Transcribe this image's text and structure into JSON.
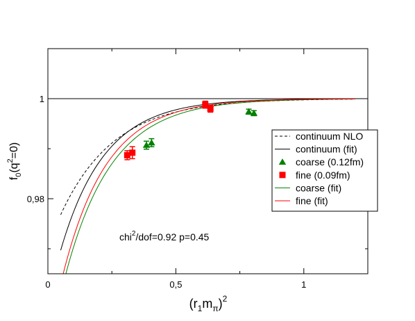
{
  "chart_data": {
    "type": "scatter",
    "title": "",
    "xlabel": "(r1mπ)2",
    "ylabel": "f0(q2=0)",
    "xlabel_parts": {
      "base": "(r",
      "sub1": "1",
      "mid": "m",
      "sub2": "π",
      "close": ")",
      "sup": "2"
    },
    "ylabel_parts": {
      "base": "f",
      "sub": "0",
      "rest1": "(q",
      "sup": "2",
      "rest2": "=0)"
    },
    "xlim": [
      0,
      1.25
    ],
    "ylim": [
      0.965,
      1.01
    ],
    "xticks": [
      {
        "value": 0,
        "label": "0"
      },
      {
        "value": 0.5,
        "label": "0,5"
      },
      {
        "value": 1,
        "label": "1"
      }
    ],
    "yticks": [
      {
        "value": 0.98,
        "label": "0,98"
      },
      {
        "value": 1.0,
        "label": "1"
      }
    ],
    "reference_line": 1.0,
    "annotation": {
      "base": "chi",
      "sup": "2",
      "rest": "/dof=0.92  p=0.45"
    },
    "legend_position": "right",
    "series": [
      {
        "name": "continuum NLO",
        "kind": "line",
        "color": "#000000",
        "dash": "4,3",
        "curve": {
          "a": 0.0295,
          "k": 4.8,
          "x_start": 0.05,
          "x_end": 1.2
        }
      },
      {
        "name": "continuum (fit)",
        "kind": "line",
        "color": "#000000",
        "dash": "",
        "curve": {
          "a": 0.0405,
          "k": 5.8,
          "x_start": 0.05,
          "x_end": 1.2
        }
      },
      {
        "name": "coarse (0.12fm)",
        "kind": "points",
        "marker": "triangle",
        "color": "#008000",
        "points": [
          {
            "x": 0.385,
            "y": 0.9907,
            "err": 0.0008
          },
          {
            "x": 0.405,
            "y": 0.9912,
            "err": 0.0008
          },
          {
            "x": 0.785,
            "y": 0.9974,
            "err": 0.0005
          },
          {
            "x": 0.805,
            "y": 0.9971,
            "err": 0.0005
          }
        ]
      },
      {
        "name": "fine (0.09fm)",
        "kind": "points",
        "marker": "square",
        "color": "#ff0000",
        "points": [
          {
            "x": 0.31,
            "y": 0.9887,
            "err": 0.0009
          },
          {
            "x": 0.33,
            "y": 0.9892,
            "err": 0.0012
          },
          {
            "x": 0.615,
            "y": 0.9988,
            "err": 0.0007
          },
          {
            "x": 0.635,
            "y": 0.998,
            "err": 0.0007
          }
        ]
      },
      {
        "name": "coarse (fit)",
        "kind": "line",
        "color": "#008000",
        "dash": "",
        "curve": {
          "a": 0.0515,
          "k": 5.5,
          "x_start": 0.05,
          "x_end": 1.2
        }
      },
      {
        "name": "fine (fit)",
        "kind": "line",
        "color": "#ff0000",
        "dash": "",
        "curve": {
          "a": 0.0495,
          "k": 5.8,
          "x_start": 0.05,
          "x_end": 1.2
        }
      }
    ]
  }
}
